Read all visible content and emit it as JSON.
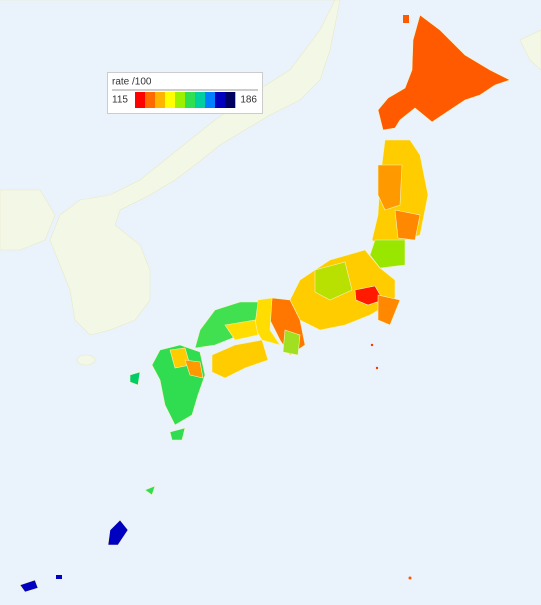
{
  "legend": {
    "title": "rate /100",
    "min": 115,
    "max": 186,
    "colors": [
      "#ff0000",
      "#ff6a00",
      "#ffb400",
      "#ffff00",
      "#9cf000",
      "#30e050",
      "#00d0a0",
      "#0080ff",
      "#0000c0",
      "#000060"
    ]
  }
}
